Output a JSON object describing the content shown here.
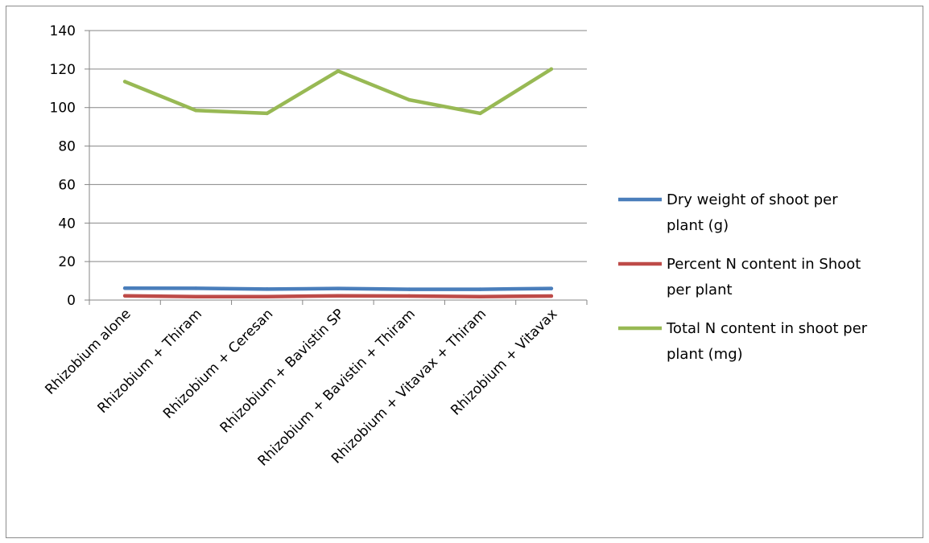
{
  "chart_data": {
    "type": "line",
    "title": "",
    "xlabel": "",
    "ylabel": "",
    "ylim": [
      0,
      140
    ],
    "yticks": [
      "0",
      "20",
      "40",
      "60",
      "80",
      "100",
      "120",
      "140"
    ],
    "categories": [
      "Rhizobium alone",
      "Rhizobium + Thiram",
      "Rhizobium + Ceresan",
      "Rhizobium + Bavistin SP",
      "Rhizobium + Bavistin + Thiram",
      "Rhizobium + Vitavax + Thiram",
      "Rhizobium + Vitavax"
    ],
    "series": [
      {
        "name": "Dry weight of shoot per plant (g)",
        "legend_lines": [
          "Dry weight of shoot per",
          "plant (g)"
        ],
        "color": "#4a7ebb",
        "values": [
          6.2,
          6.1,
          5.7,
          6.0,
          5.6,
          5.6,
          6.0
        ]
      },
      {
        "name": "Percent N content in Shoot per plant",
        "legend_lines": [
          "Percent N content in Shoot",
          "per plant"
        ],
        "color": "#be4b48",
        "values": [
          2.2,
          1.8,
          1.8,
          2.2,
          2.1,
          1.8,
          2.1
        ]
      },
      {
        "name": "Total N content in shoot per plant (mg)",
        "legend_lines": [
          "Total N content in shoot per",
          "plant (mg)"
        ],
        "color": "#98b954",
        "values": [
          113.5,
          98.5,
          97.0,
          119.0,
          104.0,
          97.0,
          120.0
        ]
      }
    ],
    "grid": true,
    "legend_position": "right"
  }
}
